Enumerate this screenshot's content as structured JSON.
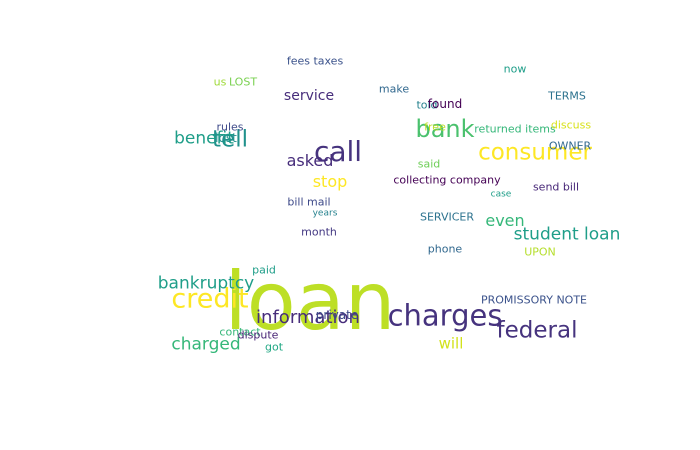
{
  "words": [
    {
      "text": "loan",
      "color": "#bddf26"
    },
    {
      "text": "charges",
      "color": "#46337e"
    },
    {
      "text": "credit",
      "color": "#fde725"
    },
    {
      "text": "federal",
      "color": "#46337e"
    },
    {
      "text": "consumer",
      "color": "#fde725"
    },
    {
      "text": "call",
      "color": "#46337e"
    },
    {
      "text": "bank",
      "color": "#4ac16d"
    },
    {
      "text": "tell",
      "color": "#21918c"
    },
    {
      "text": "information",
      "color": "#472d7b"
    },
    {
      "text": "student loan",
      "color": "#1f9e89"
    },
    {
      "text": "bankruptcy",
      "color": "#1f9e89"
    },
    {
      "text": "charged",
      "color": "#35b779"
    },
    {
      "text": "benefit",
      "color": "#1f9e89"
    },
    {
      "text": "asked",
      "color": "#472d7b"
    },
    {
      "text": "stop",
      "color": "#fde725"
    },
    {
      "text": "even",
      "color": "#35b779"
    },
    {
      "text": "will",
      "color": "#d2e21b"
    },
    {
      "text": "service",
      "color": "#472d7b"
    },
    {
      "text": "fees taxes",
      "color": "#3b528b"
    },
    {
      "text": "us",
      "color": "#a0da39"
    },
    {
      "text": "LOST",
      "color": "#7ad151"
    },
    {
      "text": "make",
      "color": "#31688e"
    },
    {
      "text": "now",
      "color": "#1f9e89"
    },
    {
      "text": "told",
      "color": "#26828e"
    },
    {
      "text": "found",
      "color": "#440154"
    },
    {
      "text": "TERMS",
      "color": "#2c728e"
    },
    {
      "text": "rules",
      "color": "#3e4a89"
    },
    {
      "text": "lost",
      "color": "#21918c"
    },
    {
      "text": "free",
      "color": "#bddf26"
    },
    {
      "text": "returned items",
      "color": "#35b779"
    },
    {
      "text": "discuss",
      "color": "#d8e219"
    },
    {
      "text": "OWNER",
      "color": "#31688e"
    },
    {
      "text": "said",
      "color": "#6ece58"
    },
    {
      "text": "collecting company",
      "color": "#440154"
    },
    {
      "text": "case",
      "color": "#1f9e89"
    },
    {
      "text": "send bill",
      "color": "#482878"
    },
    {
      "text": "bill mail",
      "color": "#3e4a89"
    },
    {
      "text": "years",
      "color": "#26828e"
    },
    {
      "text": "SERVICER",
      "color": "#2c728e"
    },
    {
      "text": "month",
      "color": "#443983"
    },
    {
      "text": "phone",
      "color": "#31688e"
    },
    {
      "text": "UPON",
      "color": "#b5de2b"
    },
    {
      "text": "paid",
      "color": "#1f9e89"
    },
    {
      "text": "PROMISSORY NOTE",
      "color": "#3b528b"
    },
    {
      "text": "private",
      "color": "#3e4a89"
    },
    {
      "text": "contact",
      "color": "#35b779"
    },
    {
      "text": "dispute",
      "color": "#482475"
    },
    {
      "text": "got",
      "color": "#22a884"
    }
  ]
}
